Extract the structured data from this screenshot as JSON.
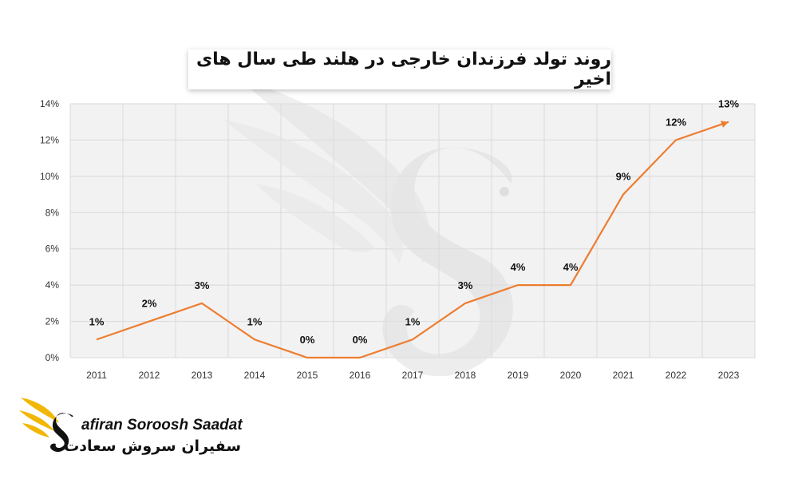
{
  "title": "روند تولد فرزندان خارجی در هلند طی سال های اخیر",
  "logo": {
    "latin_text": "afiran Soroosh Saadat",
    "persian_text": "سفیران سروش سعادت",
    "icon": "winged-s-logo-icon"
  },
  "colors": {
    "line": "#ED7D31",
    "grid": "#D9D9D9",
    "plot_background": "#F2F2F2",
    "logo_wing": "#F2B705"
  },
  "chart_data": {
    "type": "line",
    "categories": [
      "2011",
      "2012",
      "2013",
      "2014",
      "2015",
      "2016",
      "2017",
      "2018",
      "2019",
      "2020",
      "2021",
      "2022",
      "2023"
    ],
    "series": [
      {
        "values": [
          1,
          2,
          3,
          1,
          0,
          0,
          1,
          3,
          4,
          4,
          9,
          12,
          13
        ]
      }
    ],
    "data_labels": [
      "1%",
      "2%",
      "3%",
      "1%",
      "0%",
      "0%",
      "1%",
      "3%",
      "4%",
      "4%",
      "9%",
      "12%",
      "13%"
    ],
    "y_ticks": [
      "0%",
      "2%",
      "4%",
      "6%",
      "8%",
      "10%",
      "12%",
      "14%"
    ],
    "ylim": [
      0,
      14
    ],
    "title": "روند تولد فرزندان خارجی در هلند طی سال های اخیر",
    "xlabel": "",
    "ylabel": "",
    "grid": true,
    "legend": "none"
  }
}
